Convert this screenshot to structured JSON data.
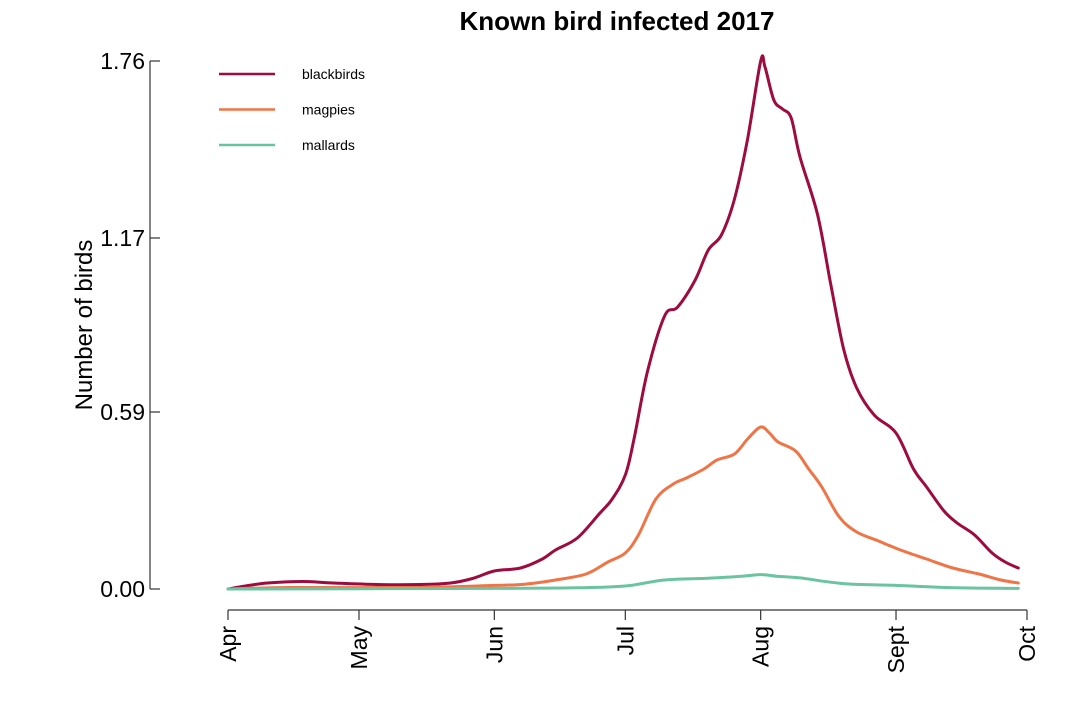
{
  "chart_data": {
    "type": "line",
    "title": "Known bird infected 2017",
    "xlabel": "",
    "ylabel": "Number of birds",
    "x_ticks": [
      "Apr",
      "May",
      "Jun",
      "Jul",
      "Aug",
      "Sept",
      "Oct"
    ],
    "xlim": [
      "2017-04-01",
      "2017-10-01"
    ],
    "y_ticks": [
      "0.00",
      "0.59",
      "1.17",
      "1.76"
    ],
    "ylim": [
      0,
      1.76
    ],
    "legend_position": "top-left",
    "grid": false,
    "series": [
      {
        "name": "blackbirds",
        "color": "#9e0b3e",
        "points": [
          [
            "2017-04-01",
            0.0
          ],
          [
            "2017-04-05",
            0.01
          ],
          [
            "2017-04-10",
            0.02
          ],
          [
            "2017-04-18",
            0.025
          ],
          [
            "2017-04-25",
            0.02
          ],
          [
            "2017-05-05",
            0.015
          ],
          [
            "2017-05-15",
            0.015
          ],
          [
            "2017-05-22",
            0.02
          ],
          [
            "2017-05-27",
            0.035
          ],
          [
            "2017-06-01",
            0.06
          ],
          [
            "2017-06-07",
            0.07
          ],
          [
            "2017-06-12",
            0.1
          ],
          [
            "2017-06-15",
            0.13
          ],
          [
            "2017-06-20",
            0.17
          ],
          [
            "2017-06-25",
            0.25
          ],
          [
            "2017-06-28",
            0.3
          ],
          [
            "2017-07-01",
            0.38
          ],
          [
            "2017-07-03",
            0.5
          ],
          [
            "2017-07-06",
            0.72
          ],
          [
            "2017-07-10",
            0.91
          ],
          [
            "2017-07-13",
            0.94
          ],
          [
            "2017-07-17",
            1.03
          ],
          [
            "2017-07-20",
            1.13
          ],
          [
            "2017-07-23",
            1.18
          ],
          [
            "2017-07-26",
            1.3
          ],
          [
            "2017-07-29",
            1.5
          ],
          [
            "2017-08-01",
            1.76
          ],
          [
            "2017-08-02",
            1.74
          ],
          [
            "2017-08-04",
            1.63
          ],
          [
            "2017-08-06",
            1.6
          ],
          [
            "2017-08-08",
            1.57
          ],
          [
            "2017-08-10",
            1.44
          ],
          [
            "2017-08-14",
            1.25
          ],
          [
            "2017-08-17",
            1.02
          ],
          [
            "2017-08-20",
            0.8
          ],
          [
            "2017-08-23",
            0.67
          ],
          [
            "2017-08-27",
            0.58
          ],
          [
            "2017-09-01",
            0.52
          ],
          [
            "2017-09-05",
            0.4
          ],
          [
            "2017-09-08",
            0.34
          ],
          [
            "2017-09-12",
            0.26
          ],
          [
            "2017-09-15",
            0.22
          ],
          [
            "2017-09-19",
            0.18
          ],
          [
            "2017-09-23",
            0.12
          ],
          [
            "2017-09-26",
            0.09
          ],
          [
            "2017-09-29",
            0.07
          ]
        ]
      },
      {
        "name": "magpies",
        "color": "#f07446",
        "points": [
          [
            "2017-04-01",
            0.0
          ],
          [
            "2017-04-15",
            0.005
          ],
          [
            "2017-05-15",
            0.005
          ],
          [
            "2017-06-01",
            0.012
          ],
          [
            "2017-06-08",
            0.016
          ],
          [
            "2017-06-15",
            0.03
          ],
          [
            "2017-06-22",
            0.05
          ],
          [
            "2017-06-27",
            0.09
          ],
          [
            "2017-07-01",
            0.12
          ],
          [
            "2017-07-04",
            0.18
          ],
          [
            "2017-07-08",
            0.3
          ],
          [
            "2017-07-12",
            0.35
          ],
          [
            "2017-07-15",
            0.37
          ],
          [
            "2017-07-19",
            0.4
          ],
          [
            "2017-07-22",
            0.43
          ],
          [
            "2017-07-26",
            0.45
          ],
          [
            "2017-07-29",
            0.5
          ],
          [
            "2017-08-01",
            0.54
          ],
          [
            "2017-08-03",
            0.52
          ],
          [
            "2017-08-05",
            0.49
          ],
          [
            "2017-08-09",
            0.46
          ],
          [
            "2017-08-12",
            0.4
          ],
          [
            "2017-08-15",
            0.34
          ],
          [
            "2017-08-19",
            0.24
          ],
          [
            "2017-08-23",
            0.19
          ],
          [
            "2017-08-28",
            0.16
          ],
          [
            "2017-09-02",
            0.13
          ],
          [
            "2017-09-08",
            0.1
          ],
          [
            "2017-09-14",
            0.07
          ],
          [
            "2017-09-20",
            0.05
          ],
          [
            "2017-09-25",
            0.03
          ],
          [
            "2017-09-29",
            0.02
          ]
        ]
      },
      {
        "name": "mallards",
        "color": "#6ac4a0",
        "points": [
          [
            "2017-04-01",
            0.0
          ],
          [
            "2017-06-01",
            0.002
          ],
          [
            "2017-06-20",
            0.004
          ],
          [
            "2017-07-01",
            0.01
          ],
          [
            "2017-07-10",
            0.03
          ],
          [
            "2017-07-20",
            0.036
          ],
          [
            "2017-07-28",
            0.043
          ],
          [
            "2017-08-01",
            0.048
          ],
          [
            "2017-08-05",
            0.042
          ],
          [
            "2017-08-10",
            0.037
          ],
          [
            "2017-08-20",
            0.018
          ],
          [
            "2017-09-01",
            0.012
          ],
          [
            "2017-09-15",
            0.004
          ],
          [
            "2017-09-29",
            0.002
          ]
        ]
      }
    ]
  }
}
